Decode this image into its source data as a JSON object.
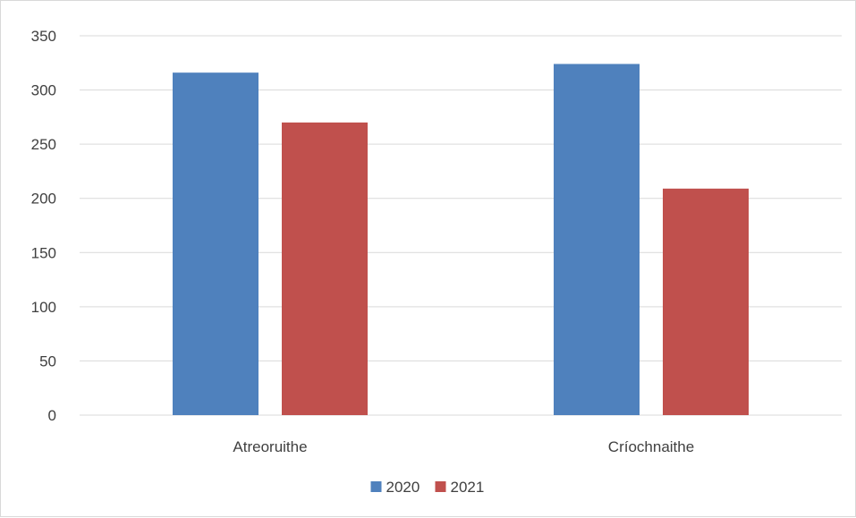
{
  "chart_data": {
    "type": "bar",
    "categories": [
      "Atreoruithe",
      "Críochnaithe"
    ],
    "series": [
      {
        "name": "2020",
        "values": [
          316,
          324
        ],
        "color": "#4f81bd"
      },
      {
        "name": "2021",
        "values": [
          270,
          209
        ],
        "color": "#c0504d"
      }
    ],
    "ylim": [
      0,
      350
    ],
    "yticks": [
      0,
      50,
      100,
      150,
      200,
      250,
      300,
      350
    ],
    "grid": true,
    "legend": "bottom"
  }
}
